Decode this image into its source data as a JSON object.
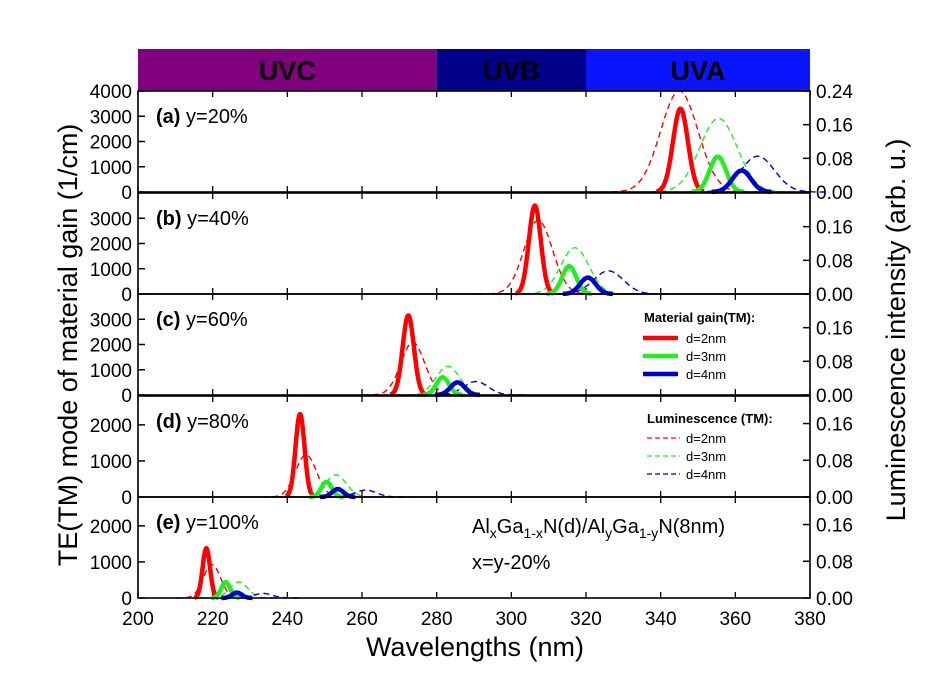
{
  "chart_data": {
    "type": "line",
    "title": "",
    "xlabel": "Wavelengths (nm)",
    "ylabel_left": "TE(TM) mode of material gain (1/cm)",
    "ylabel_right": "Luminescence intensity (arb. u.)",
    "xlim": [
      200,
      380
    ],
    "x_ticks": [
      "200",
      "220",
      "240",
      "260",
      "280",
      "300",
      "320",
      "340",
      "360",
      "380"
    ],
    "bands": [
      {
        "name": "UVC",
        "from": 200,
        "to": 280,
        "color": "#800080"
      },
      {
        "name": "UVB",
        "from": 280,
        "to": 320,
        "color": "#00008b"
      },
      {
        "name": "UVA",
        "from": 320,
        "to": 380,
        "color": "#0a14ff"
      }
    ],
    "legend": {
      "gain_title": "Material gain(TM):",
      "lum_title": "Luminescence (TM):",
      "entries": [
        {
          "label": "d=2nm",
          "color": "#ff0000"
        },
        {
          "label": "d=3nm",
          "color": "#22ee22"
        },
        {
          "label": "d=4nm",
          "color": "#0000cc"
        }
      ]
    },
    "annotation": {
      "formula_parts": [
        "Al",
        "x",
        "Ga",
        "1-x",
        "N(d)/Al",
        "y",
        "Ga",
        "1-y",
        "N(8nm)"
      ],
      "note": "x=y-20%"
    },
    "panels": [
      {
        "id": "a",
        "tag": "(a)",
        "label": "y=20%",
        "gain_ylim": [
          0,
          4000
        ],
        "gain_ticks": [
          "0",
          "1000",
          "2000",
          "3000",
          "4000"
        ],
        "lum_ylim": [
          0,
          0.24
        ],
        "lum_ticks": [
          "0.00",
          "0.08",
          "0.16",
          "0.24"
        ],
        "gain": [
          {
            "name": "d=2nm",
            "center": 345.3,
            "peak": 3300,
            "width": 2.0
          },
          {
            "name": "d=3nm",
            "center": 355.3,
            "peak": 1400,
            "width": 2.2
          },
          {
            "name": "d=4nm",
            "center": 361.7,
            "peak": 850,
            "width": 2.5
          }
        ],
        "lum": [
          {
            "name": "d=2nm",
            "center": 345.0,
            "peak": 0.24,
            "width": 5.0
          },
          {
            "name": "d=3nm",
            "center": 355.5,
            "peak": 0.175,
            "width": 5.0
          },
          {
            "name": "d=4nm",
            "center": 366.0,
            "peak": 0.085,
            "width": 4.5
          }
        ]
      },
      {
        "id": "b",
        "tag": "(b)",
        "label": "y=40%",
        "gain_ylim": [
          0,
          4000
        ],
        "gain_ticks": [
          "0",
          "1000",
          "2000",
          "3000"
        ],
        "lum_ylim": [
          0,
          0.24
        ],
        "lum_ticks": [
          "0.00",
          "0.08",
          "0.16"
        ],
        "gain": [
          {
            "name": "d=2nm",
            "center": 306.3,
            "peak": 3500,
            "width": 1.6
          },
          {
            "name": "d=3nm",
            "center": 315.5,
            "peak": 1100,
            "width": 1.9
          },
          {
            "name": "d=4nm",
            "center": 320.5,
            "peak": 650,
            "width": 2.1
          }
        ],
        "lum": [
          {
            "name": "d=2nm",
            "center": 307.2,
            "peak": 0.175,
            "width": 3.8
          },
          {
            "name": "d=3nm",
            "center": 317.0,
            "peak": 0.11,
            "width": 3.8
          },
          {
            "name": "d=4nm",
            "center": 326.0,
            "peak": 0.055,
            "width": 4.0
          }
        ]
      },
      {
        "id": "c",
        "tag": "(c)",
        "label": "y=60%",
        "gain_ylim": [
          0,
          4000
        ],
        "gain_ticks": [
          "0",
          "1000",
          "2000",
          "3000"
        ],
        "lum_ylim": [
          0,
          0.24
        ],
        "lum_ticks": [
          "0.00",
          "0.08",
          "0.16"
        ],
        "gain": [
          {
            "name": "d=2nm",
            "center": 272.4,
            "peak": 3150,
            "width": 1.5
          },
          {
            "name": "d=3nm",
            "center": 281.6,
            "peak": 700,
            "width": 1.7
          },
          {
            "name": "d=4nm",
            "center": 285.6,
            "peak": 500,
            "width": 1.9
          }
        ],
        "lum": [
          {
            "name": "d=2nm",
            "center": 273.6,
            "peak": 0.125,
            "width": 3.2
          },
          {
            "name": "d=3nm",
            "center": 283.0,
            "peak": 0.068,
            "width": 3.2
          },
          {
            "name": "d=4nm",
            "center": 290.5,
            "peak": 0.032,
            "width": 3.3
          }
        ]
      },
      {
        "id": "d",
        "tag": "(d)",
        "label": "y=80%",
        "gain_ylim": [
          0,
          2800
        ],
        "gain_ticks": [
          "0",
          "1000",
          "2000"
        ],
        "lum_ylim": [
          0,
          0.22
        ],
        "lum_ticks": [
          "0.00",
          "0.08",
          "0.16"
        ],
        "gain": [
          {
            "name": "d=2nm",
            "center": 243.4,
            "peak": 2300,
            "width": 1.2
          },
          {
            "name": "d=3nm",
            "center": 250.5,
            "peak": 420,
            "width": 1.4
          },
          {
            "name": "d=4nm",
            "center": 253.5,
            "peak": 220,
            "width": 1.5
          }
        ],
        "lum": [
          {
            "name": "d=2nm",
            "center": 245.0,
            "peak": 0.092,
            "width": 2.8
          },
          {
            "name": "d=3nm",
            "center": 253.0,
            "peak": 0.048,
            "width": 2.8
          },
          {
            "name": "d=4nm",
            "center": 261.0,
            "peak": 0.015,
            "width": 2.9
          }
        ]
      },
      {
        "id": "e",
        "tag": "(e)",
        "label": "y=100%",
        "gain_ylim": [
          0,
          2800
        ],
        "gain_ticks": [
          "0",
          "1000",
          "2000"
        ],
        "lum_ylim": [
          0,
          0.22
        ],
        "lum_ticks": [
          "0.00",
          "0.08",
          "0.16"
        ],
        "gain": [
          {
            "name": "d=2nm",
            "center": 218.3,
            "peak": 1380,
            "width": 1.0
          },
          {
            "name": "d=3nm",
            "center": 223.5,
            "peak": 440,
            "width": 1.2
          },
          {
            "name": "d=4nm",
            "center": 226.5,
            "peak": 150,
            "width": 1.3
          }
        ],
        "lum": [
          {
            "name": "d=2nm",
            "center": 219.8,
            "peak": 0.073,
            "width": 2.3
          },
          {
            "name": "d=3nm",
            "center": 227.0,
            "peak": 0.035,
            "width": 2.4
          },
          {
            "name": "d=4nm",
            "center": 233.5,
            "peak": 0.01,
            "width": 2.5
          }
        ]
      }
    ]
  }
}
